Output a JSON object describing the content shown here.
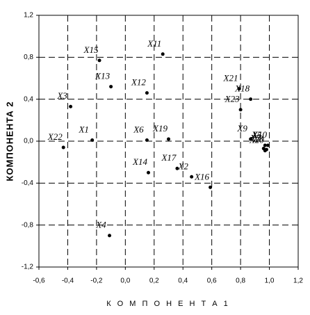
{
  "chart_data": {
    "type": "scatter",
    "xlabel": "К О М П О Н Е Н Т А  1",
    "ylabel": "КОМПОНЕНТА 2",
    "x": [
      -0.23,
      0.46,
      -0.38,
      -0.11,
      0.97,
      0.15,
      0.96,
      0.98,
      0.87,
      0.99,
      0.26,
      0.15,
      -0.1,
      0.16,
      -0.18,
      0.59,
      0.36,
      0.87,
      0.3,
      0.97,
      0.79,
      -0.43,
      0.8
    ],
    "values": [
      0.01,
      -0.34,
      0.33,
      -0.9,
      -0.04,
      0.01,
      -0.07,
      -0.08,
      0.02,
      -0.04,
      0.83,
      0.46,
      0.52,
      -0.3,
      0.77,
      -0.44,
      -0.26,
      0.4,
      0.02,
      -0.09,
      0.5,
      -0.06,
      0.3
    ],
    "point_labels": [
      "X1",
      "X2",
      "X3",
      "X4",
      "X5",
      "X6",
      "X7",
      "X8",
      "X9",
      "X10",
      "X11",
      "X12",
      "X13",
      "X14",
      "X15",
      "X16",
      "X17",
      "X18",
      "X19",
      "X20",
      "X21",
      "X22",
      "X23"
    ],
    "color": "#000000",
    "xlim": [
      -0.6,
      1.2
    ],
    "ylim": [
      -1.2,
      1.2
    ],
    "xticks": [
      {
        "value": -0.6,
        "label": "-0,6"
      },
      {
        "value": -0.4,
        "label": "-0,4"
      },
      {
        "value": -0.2,
        "label": "-0,2"
      },
      {
        "value": 0,
        "label": "0,0"
      },
      {
        "value": 0.2,
        "label": "0,2"
      },
      {
        "value": 0.4,
        "label": "0,4"
      },
      {
        "value": 0.6,
        "label": "0,6"
      },
      {
        "value": 0.8,
        "label": "0,8"
      },
      {
        "value": 1.0,
        "label": "1,0"
      },
      {
        "value": 1.2,
        "label": "1,2"
      }
    ],
    "yticks": [
      {
        "value": -1.2,
        "label": "-1,2"
      },
      {
        "value": -0.8,
        "label": "-0,8"
      },
      {
        "value": -0.4,
        "label": "-0,4"
      },
      {
        "value": 0,
        "label": "0,0"
      },
      {
        "value": 0.4,
        "label": "0,4"
      },
      {
        "value": 0.8,
        "label": "0,8"
      },
      {
        "value": 1.2,
        "label": "1,2"
      }
    ],
    "grid": true
  }
}
